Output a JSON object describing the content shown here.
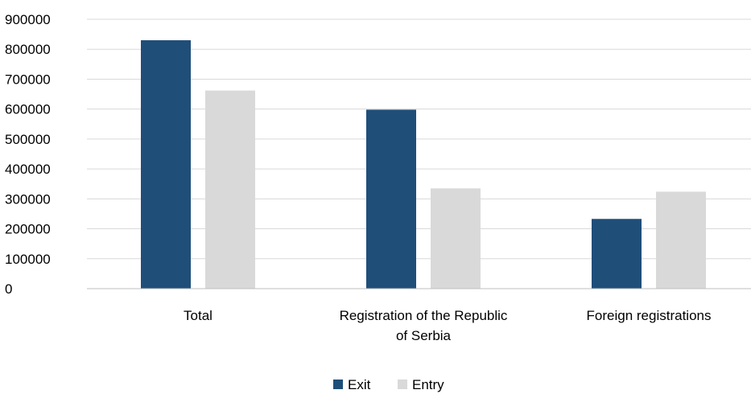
{
  "chart_data": {
    "type": "bar",
    "title": "",
    "xlabel": "",
    "ylabel": "",
    "categories": [
      [
        "Total"
      ],
      [
        "Registration of the Republic",
        "of Serbia"
      ],
      [
        "Foreign registrations"
      ]
    ],
    "series": [
      {
        "name": "Exit",
        "color": "#1f4e79",
        "values": [
          830000,
          598000,
          233000
        ]
      },
      {
        "name": "Entry",
        "color": "#d9d9d9",
        "values": [
          662000,
          335000,
          324000
        ]
      }
    ],
    "ylim": [
      0,
      900000
    ],
    "yticks": [
      "0",
      "100000",
      "200000",
      "300000",
      "400000",
      "500000",
      "600000",
      "700000",
      "800000",
      "900000"
    ],
    "grid": true,
    "legend_position": "bottom-center"
  }
}
